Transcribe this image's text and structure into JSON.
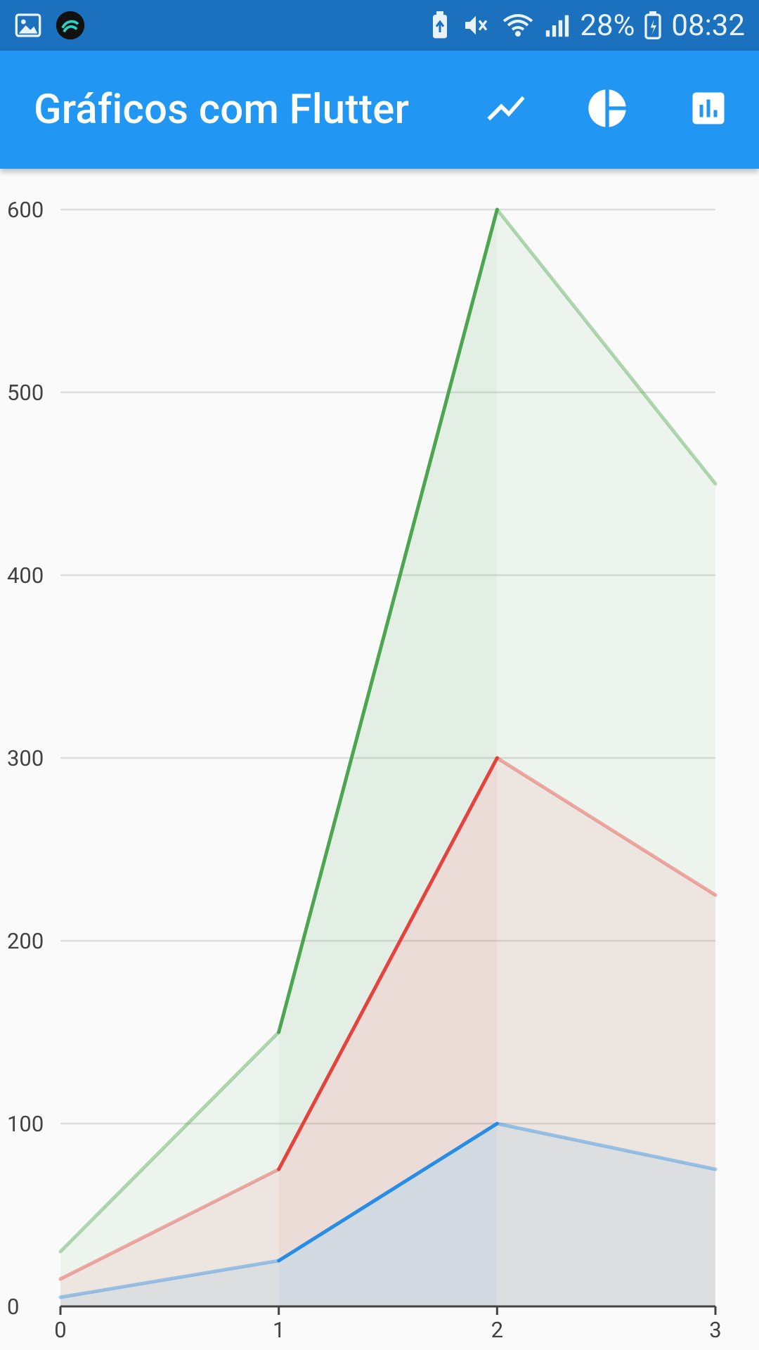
{
  "status_bar": {
    "battery": "28%",
    "time": "08:32",
    "icons": [
      "gallery-icon",
      "app-notification-icon",
      "battery-saver-icon",
      "vibrate-mute-icon",
      "wifi-icon",
      "signal-icon",
      "battery-charging-icon"
    ]
  },
  "app_bar": {
    "title": "Gráficos com Flutter",
    "background": "#2196f3",
    "actions": [
      {
        "name": "line-chart-icon",
        "label": "Line chart"
      },
      {
        "name": "pie-chart-icon",
        "label": "Pie chart"
      },
      {
        "name": "bar-chart-icon",
        "label": "Bar chart"
      }
    ]
  },
  "chart_data": {
    "type": "area",
    "stacked": true,
    "x": [
      0,
      1,
      2,
      3
    ],
    "x_tick_labels": [
      "0",
      "1",
      "2",
      "3"
    ],
    "y_tick_labels": [
      "0",
      "100",
      "200",
      "300",
      "400",
      "500",
      "600"
    ],
    "ylim": [
      0,
      600
    ],
    "grid": true,
    "series": [
      {
        "color": "#1e88e5",
        "values": [
          5,
          25,
          100,
          75
        ],
        "cumulative": [
          5,
          25,
          100,
          75
        ]
      },
      {
        "color": "#e53935",
        "values": [
          10,
          50,
          200,
          150
        ],
        "cumulative": [
          15,
          75,
          300,
          225
        ]
      },
      {
        "color": "#43a047",
        "values": [
          15,
          75,
          300,
          225
        ],
        "cumulative": [
          30,
          150,
          600,
          450
        ]
      }
    ],
    "highlighted_segment": [
      1,
      2
    ]
  }
}
